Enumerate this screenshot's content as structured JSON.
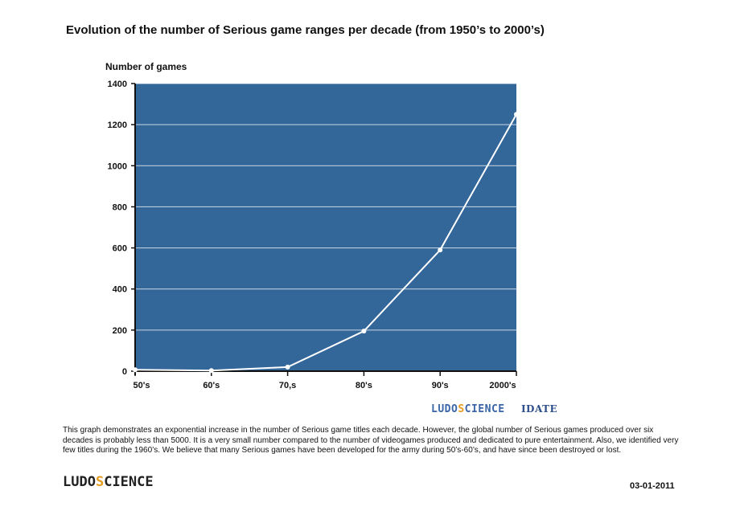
{
  "title": "Evolution of the number of Serious game ranges per decade (from 1950’s to 2000’s)",
  "credit": {
    "logo_part1": "LUDO",
    "logo_part2": "S",
    "logo_part3": "CIENCE",
    "partner": "IDATE"
  },
  "description": "This graph demonstrates an exponential increase in the number of Serious game titles each decade. However, the global number of Serious games produced over six decades is probably less than 5000. It is a very small number compared to the number of videogames produced and dedicated to pure entertainment. Also, we identified very few titles during the 1960’s. We believe that many Serious games have been developed for the army during 50’s-60’s, and have since been destroyed or lost.",
  "footer": {
    "logo_part1": "LUDO",
    "logo_part2": "S",
    "logo_part3": "CIENCE",
    "date": "03-01-2011"
  },
  "colors": {
    "plot_background": "#336699",
    "line": "#ffffff",
    "gridline": "#ffffff",
    "axis": "#111111"
  },
  "chart_data": {
    "type": "line",
    "title": "Evolution of the number of Serious game ranges per decade (from 1950’s to 2000’s)",
    "xlabel": "",
    "ylabel": "Number of games",
    "categories": [
      "50's",
      "60's",
      "70,s",
      "80's",
      "90's",
      "2000's"
    ],
    "series": [
      {
        "values": [
          7,
          3,
          20,
          195,
          590,
          1250
        ]
      }
    ],
    "ylim": [
      0,
      1400
    ],
    "yticks": [
      0,
      200,
      400,
      600,
      800,
      1000,
      1200,
      1400
    ],
    "grid": true,
    "legend": "none"
  }
}
